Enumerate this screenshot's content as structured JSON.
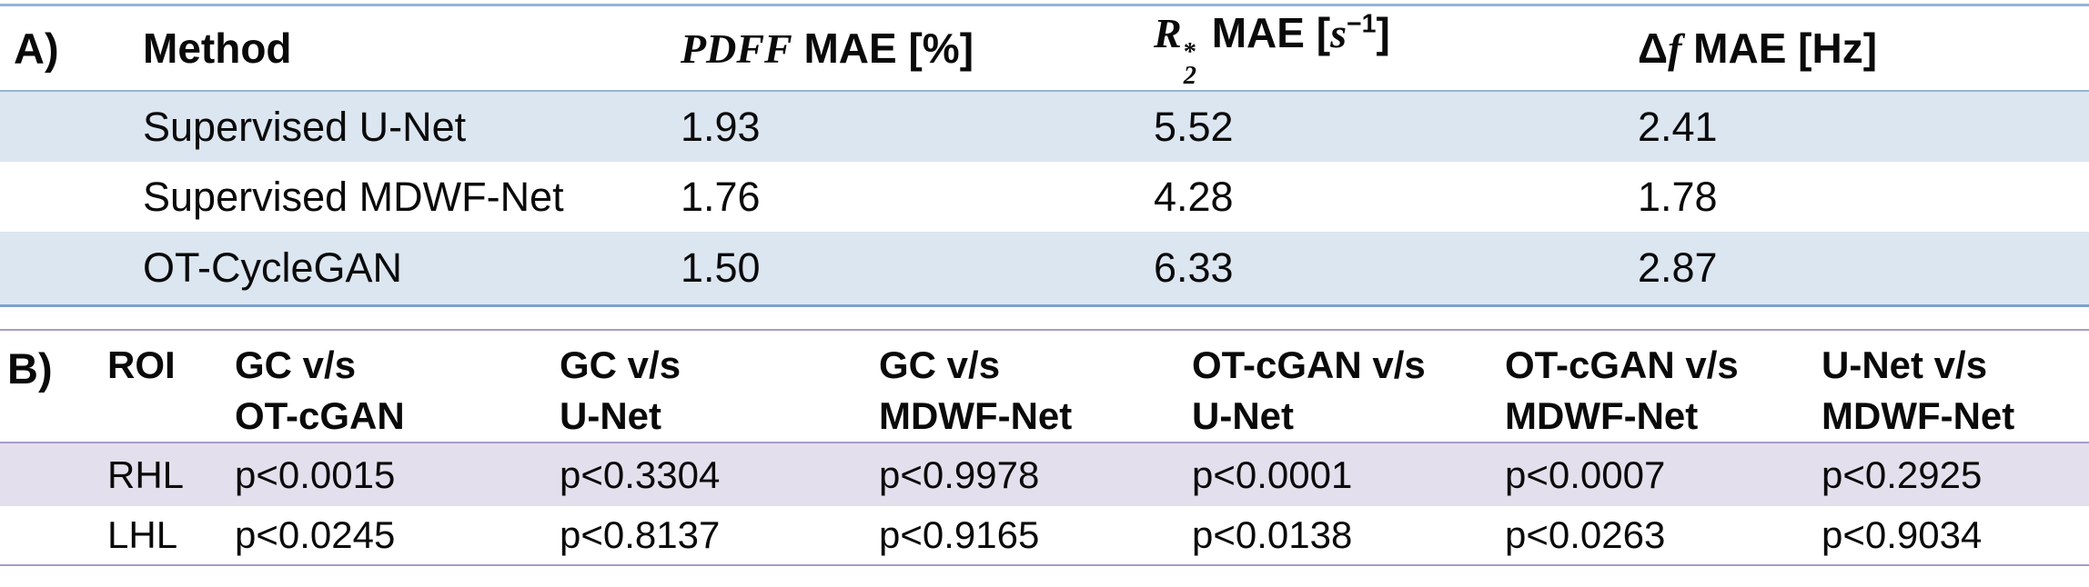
{
  "colors": {
    "blue_stripe": "#DCE6F1",
    "blue_border": "#95B3D7",
    "blue_border_dark": "#7E9FD0",
    "purple_stripe": "#E4DFEC",
    "purple_border": "#A99BC9"
  },
  "table_a": {
    "label": "A)",
    "headers": {
      "method": "Method",
      "pdff_math": "PDFF",
      "pdff_rest": " MAE [%]",
      "r2_base": "R",
      "r2_sup": "*",
      "r2_sub": "2",
      "r2_mid": " MAE [",
      "r2_s": "s",
      "r2_exp": "−1",
      "r2_close": "]",
      "df_delta": "Δ",
      "df_f": "f",
      "df_rest": " MAE [Hz]"
    },
    "rows": [
      {
        "method": "Supervised U-Net",
        "pdff": "1.93",
        "r2": "5.52",
        "df": "2.41"
      },
      {
        "method": "Supervised MDWF-Net",
        "pdff": "1.76",
        "r2": "4.28",
        "df": "1.78"
      },
      {
        "method": "OT-CycleGAN",
        "pdff": "1.50",
        "r2": "6.33",
        "df": "2.87"
      }
    ]
  },
  "table_b": {
    "label": "B)",
    "roi_header": "ROI",
    "columns": [
      {
        "line1": "GC v/s",
        "line2": "OT-cGAN"
      },
      {
        "line1": "GC v/s",
        "line2": "U-Net"
      },
      {
        "line1": "GC v/s",
        "line2": "MDWF-Net"
      },
      {
        "line1": "OT-cGAN v/s",
        "line2": "U-Net"
      },
      {
        "line1": "OT-cGAN v/s",
        "line2": "MDWF-Net"
      },
      {
        "line1": "U-Net v/s",
        "line2": "MDWF-Net"
      }
    ],
    "rows": [
      {
        "roi": "RHL",
        "values": [
          "p<0.0015",
          "p<0.3304",
          "p<0.9978",
          "p<0.0001",
          "p<0.0007",
          "p<0.2925"
        ]
      },
      {
        "roi": "LHL",
        "values": [
          "p<0.0245",
          "p<0.8137",
          "p<0.9165",
          "p<0.0138",
          "p<0.0263",
          "p<0.9034"
        ]
      }
    ]
  }
}
